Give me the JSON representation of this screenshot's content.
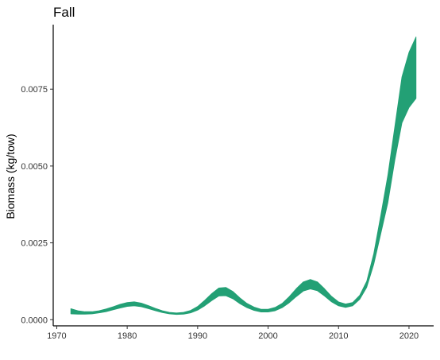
{
  "chart_data": {
    "type": "area",
    "title": "Fall",
    "xlabel": "",
    "ylabel": "Biomass (kg/tow)",
    "xlim": [
      1969.5,
      2023.5
    ],
    "ylim": [
      -0.0002,
      0.0096
    ],
    "x_ticks": [
      1970,
      1980,
      1990,
      2000,
      2010,
      2020
    ],
    "x_tick_labels": [
      "1970",
      "1980",
      "1990",
      "2000",
      "2010",
      "2020"
    ],
    "y_ticks": [
      0,
      0.0025,
      0.005,
      0.0075
    ],
    "y_tick_labels": [
      "0.0000",
      "0.0025",
      "0.0050",
      "0.0075"
    ],
    "grid": false,
    "legend": "none",
    "series": [
      {
        "fill_color": "#23a075",
        "x": [
          1972,
          1973,
          1974,
          1975,
          1976,
          1977,
          1978,
          1979,
          1980,
          1981,
          1982,
          1983,
          1984,
          1985,
          1986,
          1987,
          1988,
          1989,
          1990,
          1991,
          1992,
          1993,
          1994,
          1995,
          1996,
          1997,
          1998,
          1999,
          2000,
          2001,
          2002,
          2003,
          2004,
          2005,
          2006,
          2007,
          2008,
          2009,
          2010,
          2011,
          2012,
          2013,
          2014,
          2015,
          2016,
          2017,
          2018,
          2019,
          2020,
          2021
        ],
        "lower": [
          0.00019,
          0.00018,
          0.00018,
          0.00019,
          0.00022,
          0.00026,
          0.00032,
          0.00038,
          0.00043,
          0.00045,
          0.00042,
          0.00036,
          0.00029,
          0.00023,
          0.00019,
          0.00017,
          0.00018,
          0.00022,
          0.00031,
          0.00045,
          0.00062,
          0.00077,
          0.00078,
          0.00068,
          0.00052,
          0.00039,
          0.0003,
          0.00025,
          0.00025,
          0.00029,
          0.00039,
          0.00055,
          0.00075,
          0.00093,
          0.001,
          0.00094,
          0.00077,
          0.00058,
          0.00045,
          0.0004,
          0.00045,
          0.00066,
          0.00105,
          0.0018,
          0.0028,
          0.0038,
          0.0052,
          0.0064,
          0.0069,
          0.0072
        ],
        "upper": [
          0.00036,
          0.00029,
          0.00026,
          0.00026,
          0.00029,
          0.00035,
          0.00042,
          0.0005,
          0.00056,
          0.00058,
          0.00054,
          0.00046,
          0.00037,
          0.00029,
          0.00024,
          0.00022,
          0.00024,
          0.0003,
          0.00043,
          0.00063,
          0.00085,
          0.00103,
          0.00105,
          0.00092,
          0.00071,
          0.00053,
          0.00041,
          0.00034,
          0.00034,
          0.0004,
          0.00053,
          0.00075,
          0.00101,
          0.00123,
          0.00131,
          0.00123,
          0.00101,
          0.00076,
          0.00058,
          0.00051,
          0.00056,
          0.00079,
          0.00125,
          0.00215,
          0.0034,
          0.0047,
          0.0063,
          0.0079,
          0.0087,
          0.0092
        ]
      }
    ]
  }
}
